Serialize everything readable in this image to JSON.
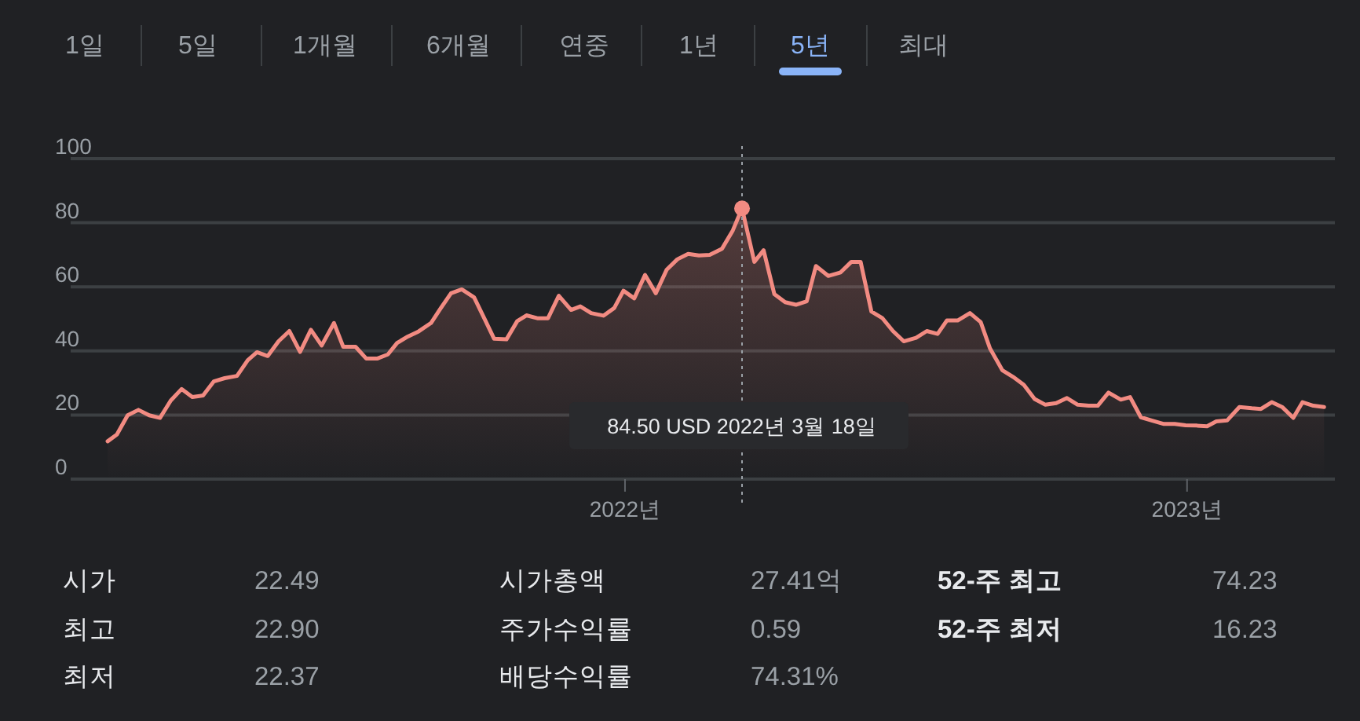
{
  "chart_data": {
    "type": "area",
    "x": [
      "2021-01-30",
      "2021-02-05",
      "2021-02-12",
      "2021-02-19",
      "2021-02-26",
      "2021-03-05",
      "2021-03-12",
      "2021-03-19",
      "2021-03-26",
      "2021-04-02",
      "2021-04-09",
      "2021-04-16",
      "2021-04-24",
      "2021-05-01",
      "2021-05-07",
      "2021-05-14",
      "2021-05-21",
      "2021-05-28",
      "2021-06-04",
      "2021-06-11",
      "2021-06-18",
      "2021-06-26",
      "2021-07-02",
      "2021-07-10",
      "2021-07-17",
      "2021-07-24",
      "2021-07-31",
      "2021-08-06",
      "2021-08-13",
      "2021-08-20",
      "2021-08-28",
      "2021-09-03",
      "2021-09-10",
      "2021-09-17",
      "2021-09-25",
      "2021-10-02",
      "2021-10-08",
      "2021-10-16",
      "2021-10-23",
      "2021-10-29",
      "2021-11-05",
      "2021-11-12",
      "2021-11-19",
      "2021-11-27",
      "2021-12-03",
      "2021-12-10",
      "2021-12-18",
      "2021-12-25",
      "2021-12-31",
      "2022-01-07",
      "2022-01-14",
      "2022-01-21",
      "2022-01-28",
      "2022-02-04",
      "2022-02-11",
      "2022-02-18",
      "2022-02-25",
      "2022-03-05",
      "2022-03-12",
      "2022-03-18",
      "2022-03-26",
      "2022-04-01",
      "2022-04-08",
      "2022-04-15",
      "2022-04-22",
      "2022-04-29",
      "2022-05-05",
      "2022-05-13",
      "2022-05-21",
      "2022-05-28",
      "2022-06-03",
      "2022-06-10",
      "2022-06-17",
      "2022-06-24",
      "2022-07-01",
      "2022-07-09",
      "2022-07-16",
      "2022-07-23",
      "2022-07-29",
      "2022-08-05",
      "2022-08-13",
      "2022-08-20",
      "2022-08-26",
      "2022-09-03",
      "2022-09-10",
      "2022-09-17",
      "2022-09-24",
      "2022-10-01",
      "2022-10-08",
      "2022-10-15",
      "2022-10-22",
      "2022-10-29",
      "2022-11-04",
      "2022-11-11",
      "2022-11-19",
      "2022-11-25",
      "2022-12-02",
      "2022-12-09",
      "2022-12-17",
      "2022-12-24",
      "2022-12-31",
      "2023-01-07",
      "2023-01-14",
      "2023-01-20",
      "2023-01-27",
      "2023-02-04",
      "2023-02-12",
      "2023-02-18",
      "2023-02-25",
      "2023-03-04",
      "2023-03-11",
      "2023-03-17",
      "2023-03-24",
      "2023-03-31"
    ],
    "series": [
      {
        "color": "#f28b82",
        "values": [
          11.8,
          13.9,
          19.9,
          21.6,
          19.9,
          19.1,
          24.5,
          28.1,
          25.6,
          26.1,
          30.5,
          31.5,
          32.2,
          37.1,
          39.6,
          38.4,
          43.0,
          46.2,
          39.7,
          46.6,
          41.7,
          48.7,
          41.3,
          41.3,
          37.6,
          37.6,
          38.9,
          42.5,
          44.5,
          46.1,
          48.7,
          53.1,
          58.0,
          59.2,
          56.7,
          49.8,
          43.8,
          43.6,
          49.3,
          51.1,
          50.2,
          50.2,
          57.2,
          52.8,
          53.9,
          51.8,
          51.0,
          53.4,
          58.8,
          56.4,
          63.7,
          58.0,
          65.3,
          68.6,
          70.3,
          69.8,
          70.0,
          71.9,
          77.6,
          84.5,
          67.8,
          71.4,
          57.7,
          55.2,
          54.4,
          55.5,
          66.5,
          63.4,
          64.5,
          67.8,
          67.8,
          52.3,
          50.3,
          46.2,
          43.0,
          44.1,
          46.2,
          45.3,
          49.5,
          49.5,
          51.8,
          49.0,
          40.8,
          34.0,
          31.9,
          29.4,
          25.0,
          23.2,
          23.7,
          25.3,
          23.2,
          22.9,
          22.9,
          27.0,
          24.8,
          25.6,
          19.3,
          18.3,
          17.2,
          17.2,
          16.8,
          16.7,
          16.5,
          18.0,
          18.3,
          22.5,
          22.1,
          21.9,
          24.0,
          22.4,
          19.1,
          24.0,
          22.9,
          22.5
        ]
      }
    ],
    "xlim": [
      "2021-01-06",
      "2023-04-07"
    ],
    "xticks": [
      {
        "value": "2022-01-01",
        "label": "2022년"
      },
      {
        "value": "2023-01-01",
        "label": "2023년"
      }
    ],
    "ylim": [
      0,
      100
    ],
    "yticks": [
      0,
      20,
      40,
      60,
      80,
      100
    ],
    "grid": "y",
    "ref_lines": [
      {
        "axis": "x",
        "value": "2022-03-18",
        "color": "#9aa0a6",
        "line_style": "dotted"
      }
    ],
    "annotations": [
      "1일",
      "5일",
      "1개월",
      "6개월",
      "연중",
      "1년",
      "5년",
      "최대",
      "84.50 USD  2022년 3월 18일",
      "시가",
      "22.49",
      "시가총액",
      "27.41억",
      "52-주 최고",
      "74.23",
      "최고",
      "22.90",
      "주가수익률",
      "0.59",
      "52-주 최저",
      "16.23",
      "최저",
      "22.37",
      "배당수익률",
      "74.31%"
    ]
  }
}
